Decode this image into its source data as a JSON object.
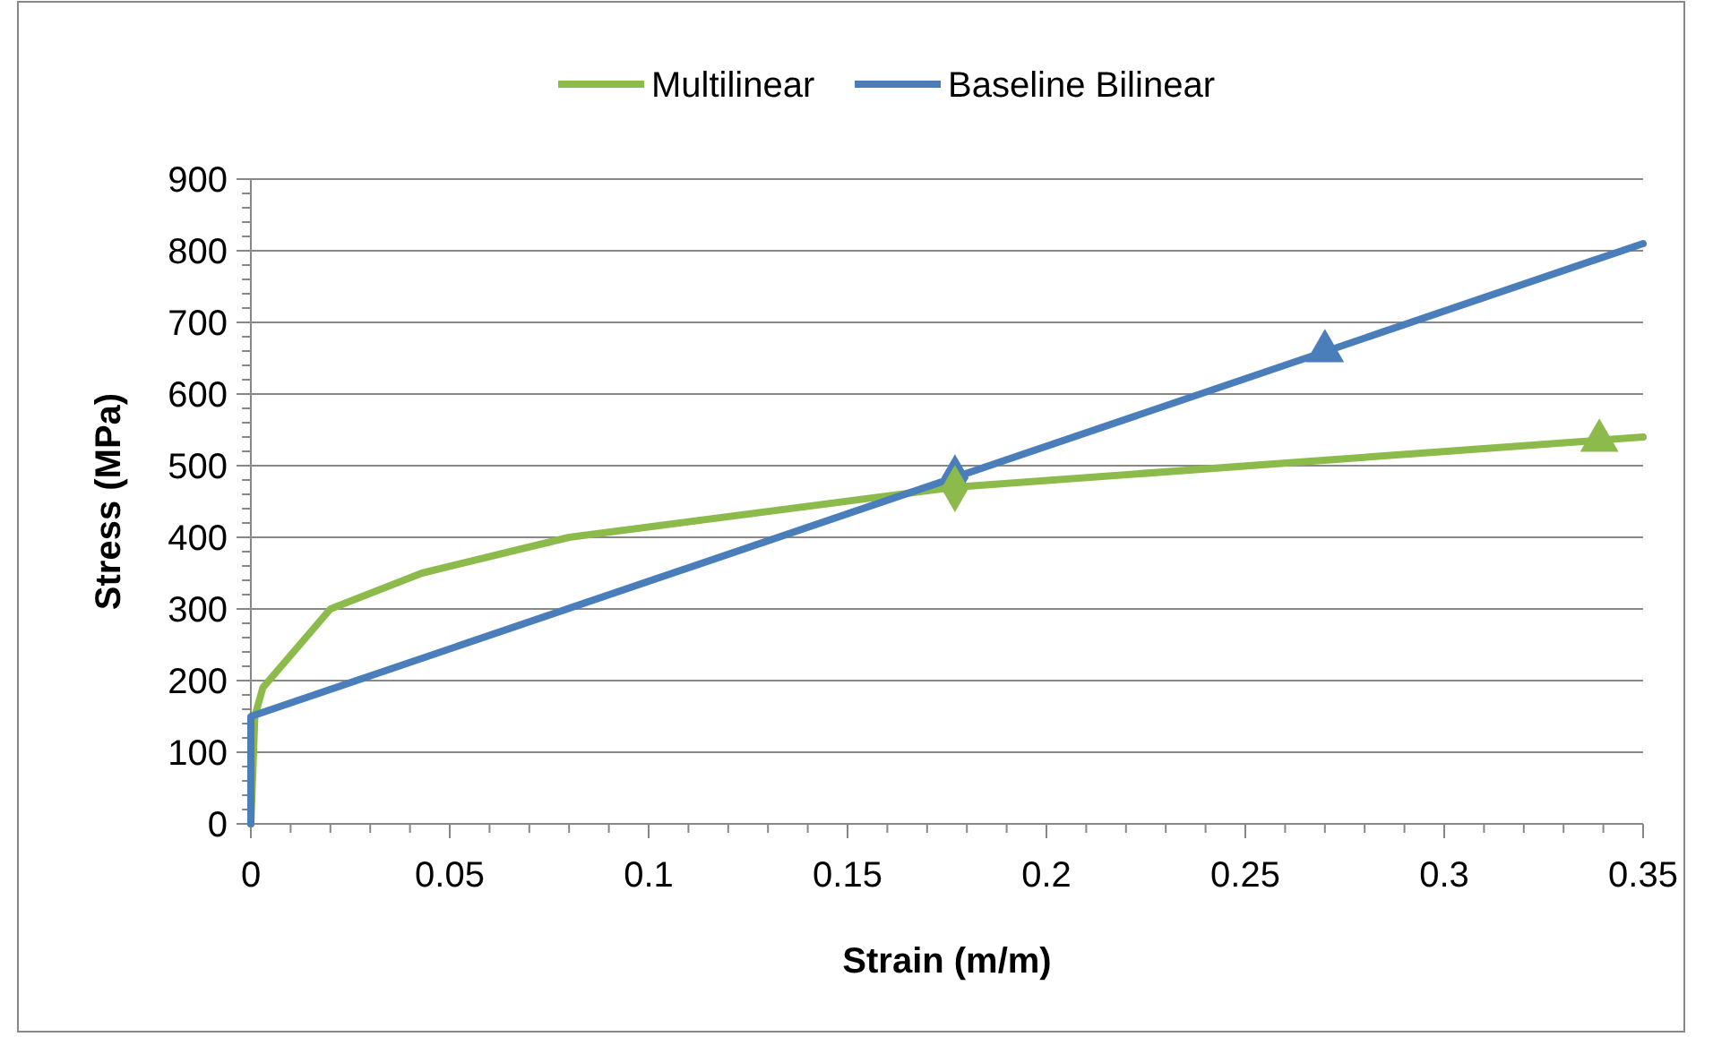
{
  "chart_data": {
    "type": "line",
    "xlabel": "Strain (m/m)",
    "ylabel": "Stress (MPa)",
    "xlim": [
      0,
      0.35
    ],
    "ylim": [
      0,
      900
    ],
    "xticks": [
      0,
      {
        "value": 0.01,
        "label": null
      },
      {
        "value": 0.02,
        "label": null
      },
      {
        "value": 0.03,
        "label": null
      },
      {
        "value": 0.04,
        "label": null
      },
      0.05,
      {
        "value": 0.06,
        "label": null
      },
      {
        "value": 0.07,
        "label": null
      },
      {
        "value": 0.08,
        "label": null
      },
      {
        "value": 0.09,
        "label": null
      },
      0.1,
      {
        "value": 0.11,
        "label": null
      },
      {
        "value": 0.12,
        "label": null
      },
      {
        "value": 0.13,
        "label": null
      },
      {
        "value": 0.14,
        "label": null
      },
      0.15,
      {
        "value": 0.16,
        "label": null
      },
      {
        "value": 0.17,
        "label": null
      },
      {
        "value": 0.18,
        "label": null
      },
      {
        "value": 0.19,
        "label": null
      },
      0.2,
      {
        "value": 0.21,
        "label": null
      },
      {
        "value": 0.22,
        "label": null
      },
      {
        "value": 0.23,
        "label": null
      },
      {
        "value": 0.24,
        "label": null
      },
      0.25,
      {
        "value": 0.26,
        "label": null
      },
      {
        "value": 0.27,
        "label": null
      },
      {
        "value": 0.28,
        "label": null
      },
      {
        "value": 0.29,
        "label": null
      },
      0.3,
      {
        "value": 0.31,
        "label": null
      },
      {
        "value": 0.32,
        "label": null
      },
      {
        "value": 0.33,
        "label": null
      },
      {
        "value": 0.34,
        "label": null
      },
      0.35
    ],
    "yticks": [
      0,
      {
        "value": 20,
        "label": null
      },
      {
        "value": 40,
        "label": null
      },
      {
        "value": 60,
        "label": null
      },
      {
        "value": 80,
        "label": null
      },
      100,
      {
        "value": 120,
        "label": null
      },
      {
        "value": 140,
        "label": null
      },
      {
        "value": 160,
        "label": null
      },
      {
        "value": 180,
        "label": null
      },
      200,
      {
        "value": 220,
        "label": null
      },
      {
        "value": 240,
        "label": null
      },
      {
        "value": 260,
        "label": null
      },
      {
        "value": 280,
        "label": null
      },
      300,
      {
        "value": 320,
        "label": null
      },
      {
        "value": 340,
        "label": null
      },
      {
        "value": 360,
        "label": null
      },
      {
        "value": 380,
        "label": null
      },
      400,
      {
        "value": 420,
        "label": null
      },
      {
        "value": 440,
        "label": null
      },
      {
        "value": 460,
        "label": null
      },
      {
        "value": 480,
        "label": null
      },
      500,
      {
        "value": 520,
        "label": null
      },
      {
        "value": 540,
        "label": null
      },
      {
        "value": 560,
        "label": null
      },
      {
        "value": 580,
        "label": null
      },
      600,
      {
        "value": 620,
        "label": null
      },
      {
        "value": 640,
        "label": null
      },
      {
        "value": 660,
        "label": null
      },
      {
        "value": 680,
        "label": null
      },
      700,
      {
        "value": 720,
        "label": null
      },
      {
        "value": 740,
        "label": null
      },
      {
        "value": 760,
        "label": null
      },
      {
        "value": 780,
        "label": null
      },
      800,
      {
        "value": 820,
        "label": null
      },
      {
        "value": 840,
        "label": null
      },
      {
        "value": 860,
        "label": null
      },
      {
        "value": 880,
        "label": null
      },
      900
    ],
    "grid": "y",
    "legend": "top",
    "line_style": "solid",
    "series": [
      {
        "name": "Multilinear",
        "color": "#8cbb4c",
        "x": [
          0,
          0.001,
          0.003,
          0.02,
          0.043,
          0.08,
          0.177,
          0.35
        ],
        "values": [
          0,
          150,
          190,
          300,
          350,
          400,
          470,
          540
        ]
      },
      {
        "name": "Baseline Bilinear",
        "color": "#4a7ebb",
        "x": [
          0,
          0,
          0.35
        ],
        "values": [
          0,
          150,
          810
        ]
      },
      {
        "type": "scatter",
        "marker": "diamond",
        "color": "#4a7ebb",
        "x": [
          0.177
        ],
        "values": [
          483
        ]
      },
      {
        "type": "scatter",
        "marker": "diamond",
        "color": "#8cbb4c",
        "x": [
          0.177
        ],
        "values": [
          468
        ]
      },
      {
        "type": "scatter",
        "marker": "triangle",
        "color": "#8cbb4c",
        "x": [
          0.339
        ],
        "values": [
          535
        ]
      },
      {
        "type": "scatter",
        "marker": "triangle",
        "color": "#4a7ebb",
        "x": [
          0.27
        ],
        "values": [
          660
        ]
      }
    ]
  }
}
